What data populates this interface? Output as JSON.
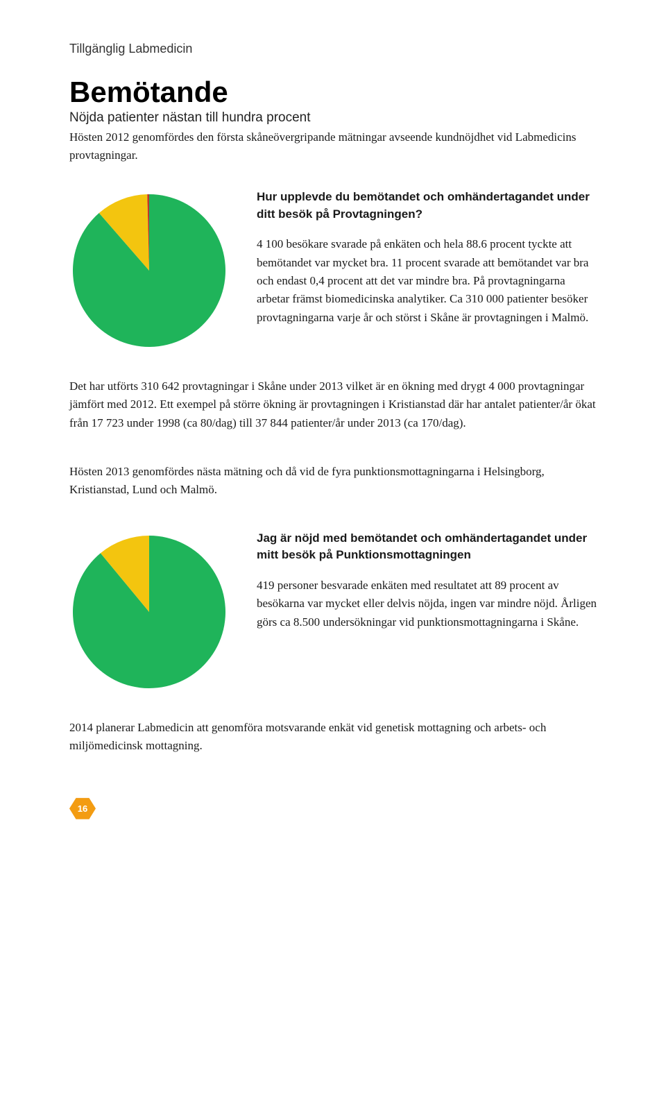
{
  "category": "Tillgänglig Labmedicin",
  "title": "Bemötande",
  "subtitle": "Nöjda patienter nästan till hundra procent",
  "intro": "Hösten 2012 genomfördes den första skåneövergripande mätningar avseende kundnöjdhet vid Labmedicins provtagningar.",
  "chart1": {
    "type": "pie",
    "question": "Hur upplevde du bemötandet och omhändertagandet under ditt besök på Provtagningen?",
    "body": "4 100 besökare svarade på enkäten och hela 88.6 procent tyckte att bemötandet var mycket bra. 11 procent svarade att bemötandet var bra och endast 0,4 procent att det var mindre bra. På provtagningarna arbetar främst biomedicinska analytiker. Ca 310 000 patienter besöker provtagningarna varje år och störst i Skåne är provtagningen i Malmö.",
    "slices": [
      {
        "value": 88.6,
        "color": "#1fb45a"
      },
      {
        "value": 11.0,
        "color": "#f3c50f"
      },
      {
        "value": 0.4,
        "color": "#c0392b"
      }
    ],
    "radius": 110,
    "start_angle_deg": -90
  },
  "para2": "Det har utförts 310 642 provtagningar i Skåne under 2013 vilket är en ökning med drygt 4 000 provtagningar jämfört med 2012. Ett exempel på större ökning är provtagningen i Kristianstad där har antalet patienter/år ökat från 17 723 under 1998 (ca 80/dag) till 37 844 patienter/år under 2013 (ca 170/dag).",
  "para3": "Hösten 2013 genomfördes nästa mätning och då vid de fyra punktionsmottagningarna i Helsingborg, Kristianstad, Lund och Malmö.",
  "chart2": {
    "type": "pie",
    "question": "Jag är nöjd med bemötandet och omhändertagandet under mitt besök på Punktionsmottagningen",
    "body": "419 personer besvarade enkäten med resultatet att 89 procent av besökarna var mycket eller delvis nöjda, ingen var mindre nöjd. Årligen görs ca 8.500 undersökningar vid punktionsmottagningarna i Skåne.",
    "slices": [
      {
        "value": 89.0,
        "color": "#1fb45a"
      },
      {
        "value": 11.0,
        "color": "#f3c50f"
      }
    ],
    "radius": 110,
    "start_angle_deg": -90
  },
  "para4": "2014 planerar Labmedicin att genomföra motsvarande enkät vid genetisk mottagning och arbets- och miljömedicinsk mottagning.",
  "page_number": "16",
  "colors": {
    "accent": "#f39c12",
    "text": "#1a1a1a",
    "background": "#ffffff"
  }
}
